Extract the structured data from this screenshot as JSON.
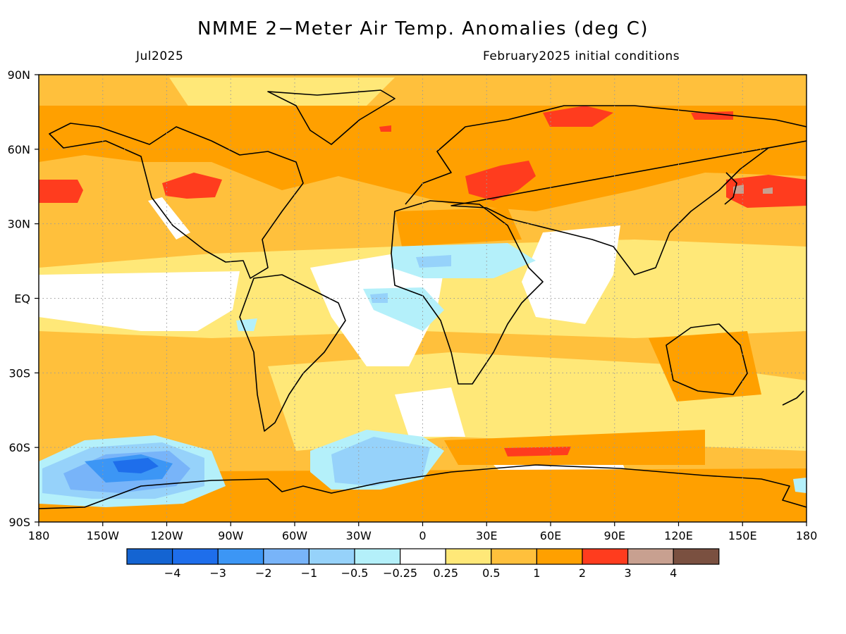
{
  "title": "NMME 2−Meter Air Temp. Anomalies (deg C)",
  "subtitle_left": "Jul2025",
  "subtitle_right": "February2025 initial conditions",
  "map": {
    "projection": "equirectangular",
    "lon_range": [
      -180,
      180
    ],
    "lat_range": [
      -90,
      90
    ],
    "lat_labels": [
      {
        "lat": 90,
        "text": "90N"
      },
      {
        "lat": 60,
        "text": "60N"
      },
      {
        "lat": 30,
        "text": "30N"
      },
      {
        "lat": 0,
        "text": "EQ"
      },
      {
        "lat": -30,
        "text": "30S"
      },
      {
        "lat": -60,
        "text": "60S"
      },
      {
        "lat": -90,
        "text": "90S"
      }
    ],
    "lon_labels": [
      {
        "lon": -180,
        "text": "180"
      },
      {
        "lon": -150,
        "text": "150W"
      },
      {
        "lon": -120,
        "text": "120W"
      },
      {
        "lon": -90,
        "text": "90W"
      },
      {
        "lon": -60,
        "text": "60W"
      },
      {
        "lon": -30,
        "text": "30W"
      },
      {
        "lon": 0,
        "text": "0"
      },
      {
        "lon": 30,
        "text": "30E"
      },
      {
        "lon": 60,
        "text": "60E"
      },
      {
        "lon": 90,
        "text": "90E"
      },
      {
        "lon": 120,
        "text": "120E"
      },
      {
        "lon": 150,
        "text": "150E"
      },
      {
        "lon": 180,
        "text": "180"
      }
    ],
    "grid": true,
    "coastlines": true
  },
  "colorbar": {
    "colors": [
      "#1464d2",
      "#1e6eeb",
      "#3c96f5",
      "#78b4f9",
      "#96d2fa",
      "#b4f0fa",
      "#ffffff",
      "#ffe878",
      "#ffc03c",
      "#ffa000",
      "#ff3c1e",
      "#c8a090",
      "#7a5040"
    ],
    "labels": [
      "−4",
      "−3",
      "−2",
      "−1",
      "−0.5",
      "−0.25",
      "0.25",
      "0.5",
      "1",
      "2",
      "3",
      "4"
    ]
  },
  "anomaly_regions": [
    {
      "name": "Arctic / high-latitude land",
      "value": 1.5
    },
    {
      "name": "Western United States",
      "value": 2.5
    },
    {
      "name": "North Pacific (west of N. America)",
      "value": 2.5
    },
    {
      "name": "Eastern Europe / Western Russia",
      "value": 2.5
    },
    {
      "name": "Northwest Pacific (east of Japan)",
      "value": 3.0
    },
    {
      "name": "Eastern Siberia",
      "value": 2.5
    },
    {
      "name": "Tropical North Atlantic",
      "value": -0.4
    },
    {
      "name": "Equatorial Atlantic",
      "value": -0.4
    },
    {
      "name": "Equatorial East Pacific",
      "value": 0.0
    },
    {
      "name": "Northern Indian Ocean",
      "value": 0.0
    },
    {
      "name": "Southern Ocean south of Africa",
      "value": 2.5
    },
    {
      "name": "Amundsen / Bellingshausen Sea",
      "value": -2.5
    },
    {
      "name": "Weddell Sea",
      "value": -0.7
    },
    {
      "name": "Antarctica",
      "value": 1.5
    },
    {
      "name": "Australia",
      "value": 1.0
    },
    {
      "name": "South America",
      "value": 0.7
    }
  ]
}
